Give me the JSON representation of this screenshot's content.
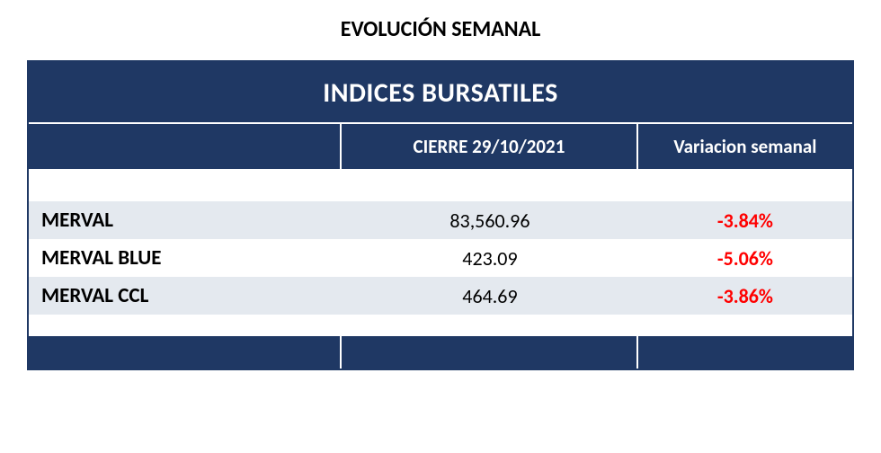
{
  "page_title": "EVOLUCIÓN SEMANAL",
  "table": {
    "banner": "INDICES BURSATILES",
    "columns": {
      "name": "",
      "close": "CIERRE 29/10/2021",
      "variation": "Variacion semanal"
    },
    "col_widths": [
      "38%",
      "36%",
      "26%"
    ],
    "rows": [
      {
        "name": "MERVAL",
        "close": "83,560.96",
        "variation": "-3.84%",
        "neg": true,
        "alt": true
      },
      {
        "name": "MERVAL BLUE",
        "close": "423.09",
        "variation": "-5.06%",
        "neg": true,
        "alt": false
      },
      {
        "name": "MERVAL CCL",
        "close": "464.69",
        "variation": "-3.86%",
        "neg": true,
        "alt": true
      }
    ]
  },
  "colors": {
    "header_bg": "#1f3864",
    "header_fg": "#ffffff",
    "row_alt_bg": "#e4e9ef",
    "negative": "#ff0000",
    "positive": "#008000",
    "text": "#000000",
    "page_bg": "#ffffff"
  },
  "typography": {
    "title_size_pt": 18,
    "banner_size_pt": 22,
    "header_size_pt": 16,
    "cell_size_pt": 17,
    "font_family": "Calibri"
  }
}
